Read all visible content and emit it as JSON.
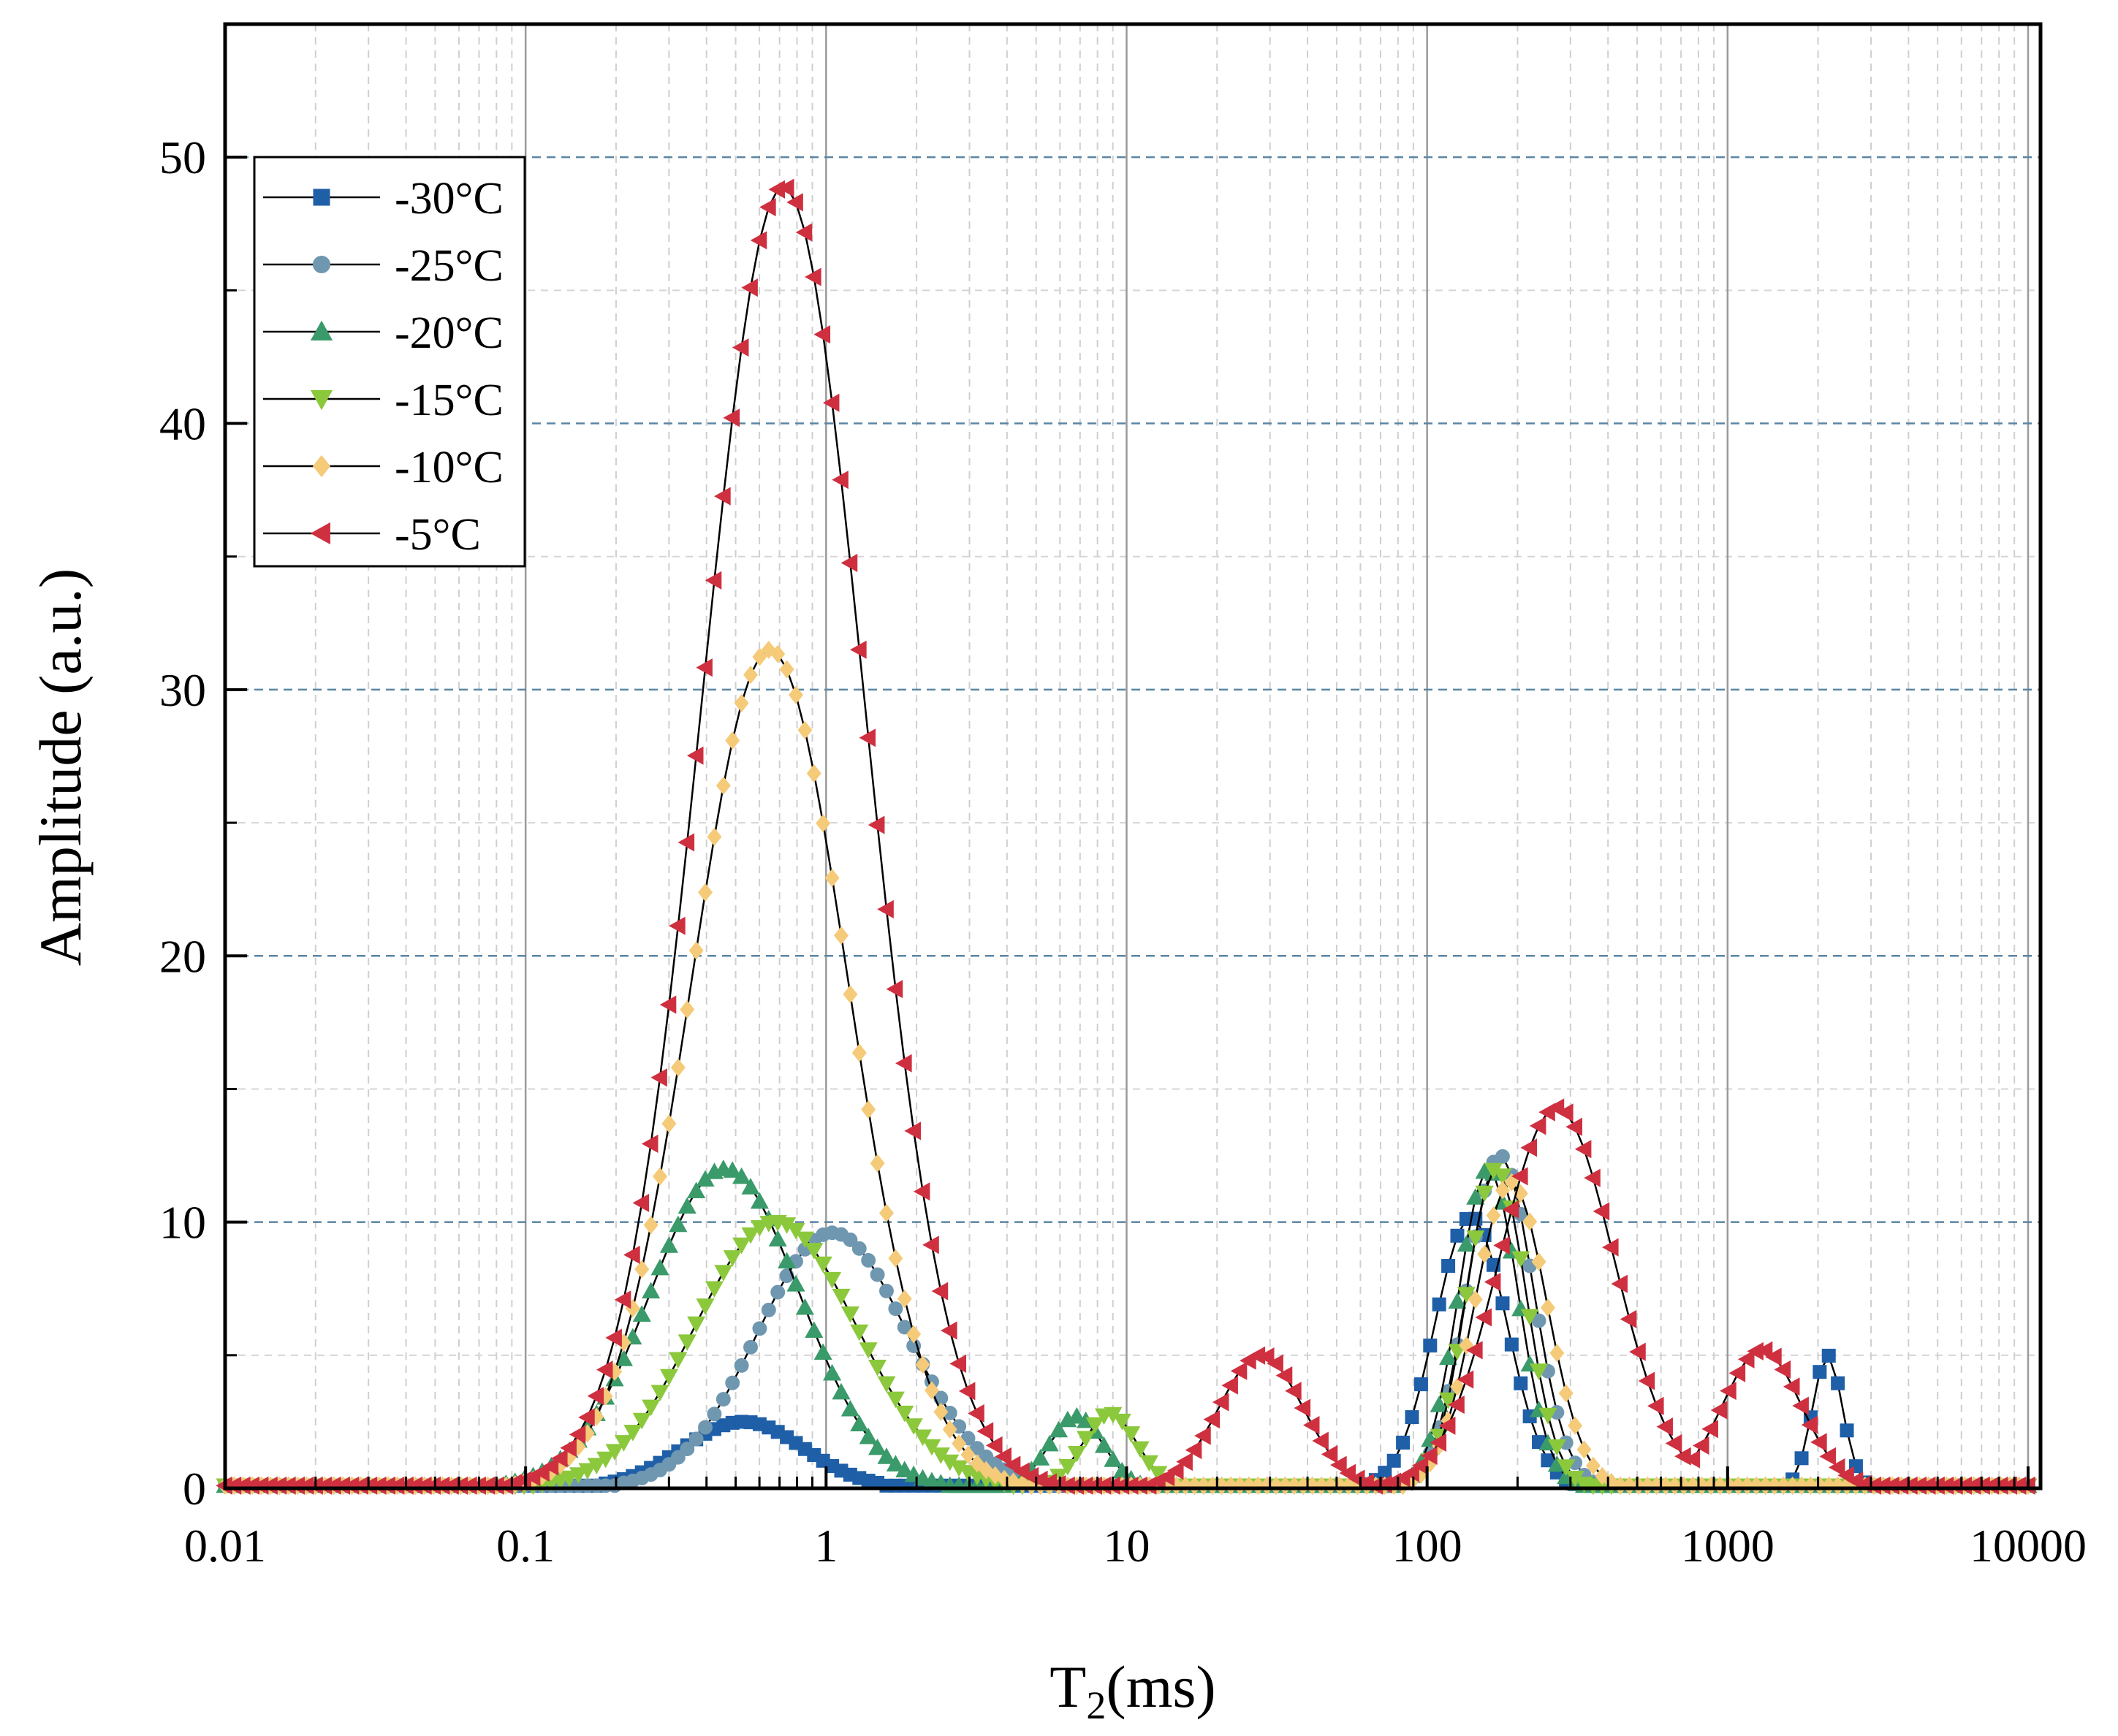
{
  "chart_data": {
    "type": "line",
    "xlabel": "T",
    "xlabel_sub": "2",
    "xlabel_suffix": "(ms)",
    "ylabel": "Amplitude (a.u.)",
    "xscale": "log",
    "xlim": [
      0.01,
      11000
    ],
    "ylim": [
      0,
      55
    ],
    "x_ticks": [
      0.01,
      0.1,
      1,
      10,
      100,
      1000,
      10000
    ],
    "x_tick_labels": [
      "0.01",
      "0.1",
      "1",
      "10",
      "100",
      "1000",
      "10000"
    ],
    "y_ticks": [
      0,
      10,
      20,
      30,
      40,
      50
    ],
    "y_tick_labels": [
      "0",
      "10",
      "20",
      "30",
      "40",
      "50"
    ],
    "grid": true,
    "legend_position": "top-left",
    "series": [
      {
        "name": "-30°C",
        "color": "#1f5fa8",
        "marker": "square",
        "peaks": [
          {
            "center": 0.53,
            "height": 2.5,
            "width": 0.2
          },
          {
            "center": 140,
            "height": 10.2,
            "width": 0.12
          },
          {
            "center": 2150,
            "height": 5.0,
            "width": 0.05
          }
        ]
      },
      {
        "name": "-25°C",
        "color": "#6f97b0",
        "marker": "circle",
        "peaks": [
          {
            "center": 1.05,
            "height": 9.6,
            "width": 0.25
          },
          {
            "center": 175,
            "height": 12.5,
            "width": 0.11
          }
        ]
      },
      {
        "name": "-20°C",
        "color": "#3a9a6a",
        "marker": "triangle-up",
        "peaks": [
          {
            "center": 0.46,
            "height": 12.0,
            "width": 0.25
          },
          {
            "center": 6.8,
            "height": 2.7,
            "width": 0.09
          },
          {
            "center": 160,
            "height": 12.0,
            "width": 0.1
          }
        ]
      },
      {
        "name": "-15°C",
        "color": "#8cc83c",
        "marker": "triangle-down",
        "peaks": [
          {
            "center": 0.68,
            "height": 10.0,
            "width": 0.27
          },
          {
            "center": 8.8,
            "height": 2.8,
            "width": 0.09
          },
          {
            "center": 170,
            "height": 12.0,
            "width": 0.1
          }
        ]
      },
      {
        "name": "-10°C",
        "color": "#f5ca78",
        "marker": "diamond",
        "peaks": [
          {
            "center": 0.65,
            "height": 31.5,
            "width": 0.26
          },
          {
            "center": 190,
            "height": 11.5,
            "width": 0.12
          }
        ]
      },
      {
        "name": "-5°C",
        "color": "#cf3040",
        "marker": "triangle-left",
        "peaks": [
          {
            "center": 0.72,
            "height": 48.9,
            "width": 0.27
          },
          {
            "center": 28,
            "height": 5.0,
            "width": 0.14
          },
          {
            "center": 270,
            "height": 14.3,
            "width": 0.19
          },
          {
            "center": 1300,
            "height": 5.2,
            "width": 0.13
          }
        ]
      }
    ]
  }
}
